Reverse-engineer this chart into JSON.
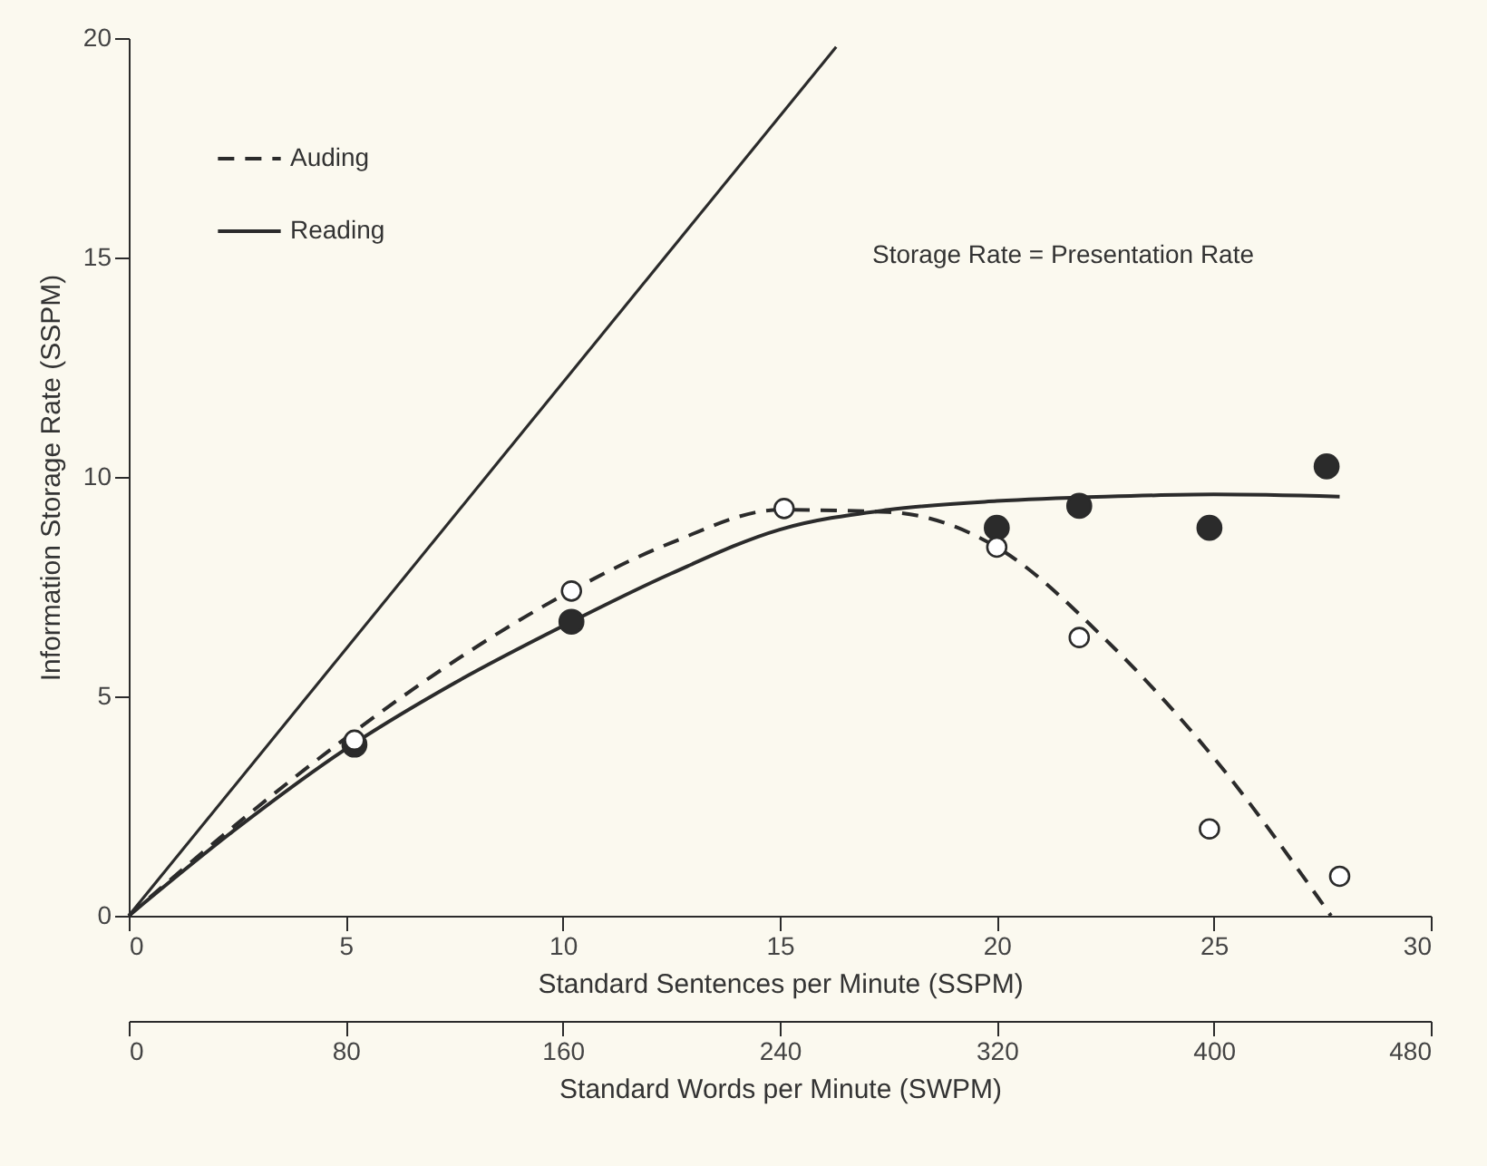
{
  "chart_data": {
    "type": "line",
    "xlabel": "Standard Sentences per Minute (SSPM)",
    "ylabel": "Information Storage Rate (SSPM)",
    "x2label": "Standard Words per Minute (SWPM)",
    "xlim": [
      0,
      30
    ],
    "xticks": [
      0,
      5,
      10,
      15,
      20,
      25,
      30
    ],
    "ylim": [
      0,
      20
    ],
    "yticks": [
      0,
      5,
      10,
      15,
      20
    ],
    "x2lim": [
      0,
      480
    ],
    "x2ticks": [
      0,
      80,
      160,
      240,
      320,
      400,
      480
    ],
    "legend": "top left",
    "grid": false,
    "annotations": [
      "Storage Rate = Presentation Rate"
    ],
    "series": [
      {
        "name": "Auding",
        "line_style": "dashed",
        "color": "#2b2b2b",
        "x": [
          0,
          2.5,
          5,
          7.5,
          10,
          12.5,
          15,
          17.5,
          20,
          22.5,
          25,
          27.7
        ],
        "values": [
          0,
          2.1,
          4.05,
          5.8,
          7.3,
          8.5,
          9.25,
          9.2,
          8.4,
          6.3,
          3.6,
          0
        ]
      },
      {
        "name": "Reading",
        "line_style": "solid",
        "color": "#2b2b2b",
        "x": [
          0,
          2.5,
          5,
          7.5,
          10,
          12.5,
          15,
          17.5,
          20,
          22.5,
          25,
          27.9
        ],
        "values": [
          0,
          2,
          3.8,
          5.3,
          6.6,
          7.8,
          8.8,
          9.25,
          9.45,
          9.55,
          9.6,
          9.55
        ]
      },
      {
        "line_style": "solid",
        "color": "#2b2b2b",
        "x": [
          0,
          16.3
        ],
        "values": [
          0,
          19.8
        ]
      },
      {
        "type": "scatter",
        "marker": "circle",
        "color": "#2b2b2b",
        "x": [
          5.2,
          10.2,
          20,
          21.9,
          24.9,
          27.6
        ],
        "values": [
          3.9,
          6.7,
          8.84,
          9.34,
          8.84,
          10.24
        ]
      },
      {
        "type": "scatter",
        "marker": "circle",
        "color": "#ffffff",
        "x": [
          5.2,
          10.2,
          15.1,
          20,
          21.9,
          24.9,
          27.9
        ],
        "values": [
          4.0,
          7.4,
          9.28,
          8.4,
          6.34,
          1.98,
          0.9
        ]
      }
    ]
  }
}
